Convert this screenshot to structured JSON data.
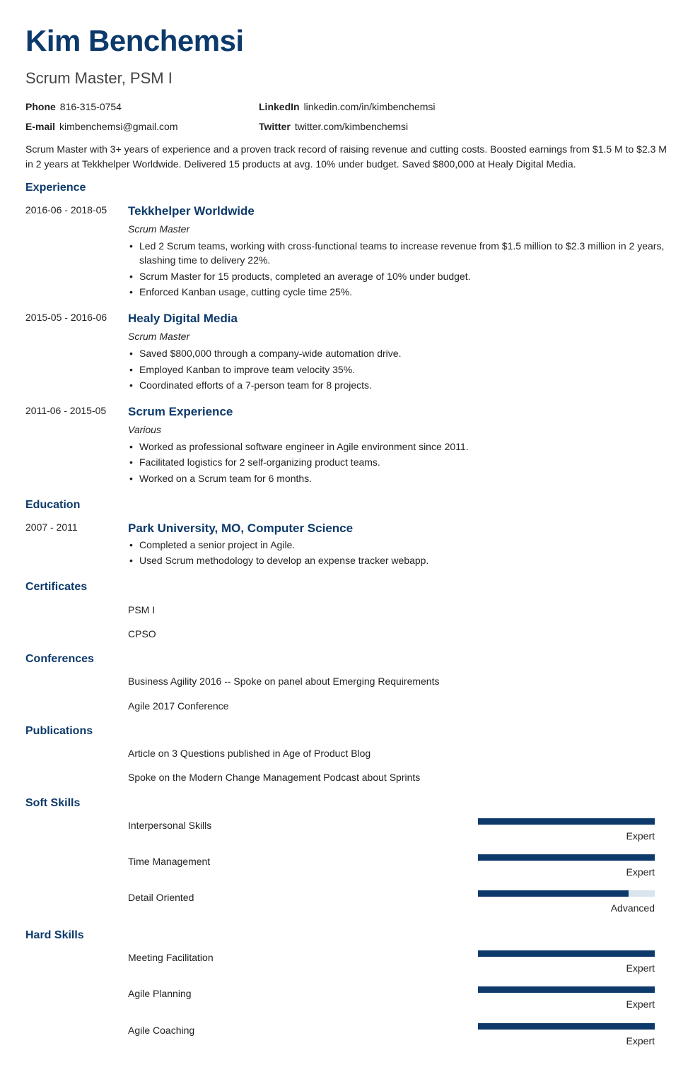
{
  "name": "Kim Benchemsi",
  "title": "Scrum Master, PSM I",
  "contact": {
    "phone_label": "Phone",
    "phone": "816-315-0754",
    "email_label": "E-mail",
    "email": "kimbenchemsi@gmail.com",
    "linkedin_label": "LinkedIn",
    "linkedin": "linkedin.com/in/kimbenchemsi",
    "twitter_label": "Twitter",
    "twitter": "twitter.com/kimbenchemsi"
  },
  "summary": "Scrum Master with 3+ years of experience and a proven track record of raising revenue and cutting costs. Boosted earnings from $1.5 M to $2.3 M in 2 years at Tekkhelper Worldwide. Delivered 15 products at avg. 10% under budget. Saved $800,000 at Healy Digital Media.",
  "sections": {
    "experience": "Experience",
    "education": "Education",
    "certificates": "Certificates",
    "conferences": "Conferences",
    "publications": "Publications",
    "softskills": "Soft Skills",
    "hardskills": "Hard Skills"
  },
  "experience": [
    {
      "dates": "2016-06 - 2018-05",
      "company": "Tekkhelper Worldwide",
      "role": "Scrum Master",
      "bullets": [
        "Led 2 Scrum teams, working with cross-functional teams to increase revenue from $1.5 million to $2.3 million in 2 years, slashing time to delivery 22%.",
        "Scrum Master for 15 products, completed an average of 10% under budget.",
        "Enforced Kanban usage, cutting cycle time 25%."
      ]
    },
    {
      "dates": "2015-05 - 2016-06",
      "company": "Healy Digital Media",
      "role": "Scrum Master",
      "bullets": [
        "Saved $800,000 through a company-wide automation drive.",
        "Employed Kanban to improve team velocity 35%.",
        "Coordinated efforts of a 7-person team for 8 projects."
      ]
    },
    {
      "dates": "2011-06 - 2015-05",
      "company": "Scrum Experience",
      "role": "Various",
      "bullets": [
        "Worked as professional software engineer in Agile environment since 2011.",
        "Facilitated logistics for 2 self-organizing product teams.",
        "Worked on a Scrum team for 6 months."
      ]
    }
  ],
  "education": [
    {
      "dates": "2007 - 2011",
      "school": "Park University, MO, Computer Science",
      "bullets": [
        "Completed a senior project in Agile.",
        "Used Scrum methodology to develop an expense tracker webapp."
      ]
    }
  ],
  "certificates": [
    "PSM I",
    "CPSO"
  ],
  "conferences": [
    "Business Agility 2016 -- Spoke on panel about Emerging Requirements",
    "Agile 2017 Conference"
  ],
  "publications": [
    "Article on 3 Questions published in Age of Product Blog",
    "Spoke on the Modern Change Management Podcast about Sprints"
  ],
  "softskills": [
    {
      "name": "Interpersonal Skills",
      "level": "Expert",
      "pct": 100
    },
    {
      "name": "Time Management",
      "level": "Expert",
      "pct": 100
    },
    {
      "name": "Detail Oriented",
      "level": "Advanced",
      "pct": 85
    }
  ],
  "hardskills": [
    {
      "name": "Meeting Facilitation",
      "level": "Expert",
      "pct": 100
    },
    {
      "name": "Agile Planning",
      "level": "Expert",
      "pct": 100
    },
    {
      "name": "Agile Coaching",
      "level": "Expert",
      "pct": 100
    }
  ],
  "colors": {
    "accent": "#0d3a6b",
    "bar_bg": "#d9e4ef"
  }
}
